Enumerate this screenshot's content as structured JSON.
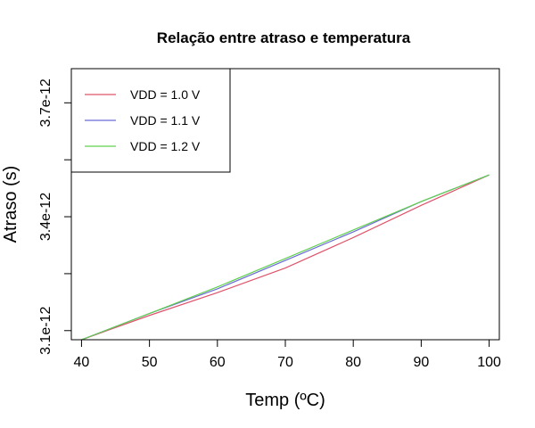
{
  "chart_data": {
    "type": "line",
    "title": "Relação entre atraso e temperatura",
    "xlabel": "Temp (ºC)",
    "ylabel": "Atraso (s)",
    "xlim": [
      38.5,
      101.5
    ],
    "ylim": [
      3.076e-12,
      3.79e-12
    ],
    "x_ticks": [
      40,
      50,
      60,
      70,
      80,
      90,
      100
    ],
    "x_tick_labels": [
      "40",
      "50",
      "60",
      "70",
      "80",
      "90",
      "100"
    ],
    "y_ticks": [
      3.1e-12,
      3.25e-12,
      3.4e-12,
      3.55e-12,
      3.7e-12
    ],
    "y_tick_labels": [
      "3.1e-12",
      "",
      "3.4e-12",
      "",
      "3.7e-12"
    ],
    "grid": false,
    "legend_position": "top-left",
    "x": [
      40,
      50,
      60,
      70,
      80,
      90,
      100
    ],
    "series": [
      {
        "name": "VDD = 1.0 V",
        "color": "#df536b",
        "values": [
          3.076e-12,
          3.14e-12,
          3.2e-12,
          3.265e-12,
          3.345e-12,
          3.43e-12,
          3.51e-12
        ]
      },
      {
        "name": "VDD = 1.1 V",
        "color": "#6b6bd6",
        "values": [
          3.076e-12,
          3.145e-12,
          3.21e-12,
          3.285e-12,
          3.36e-12,
          3.44e-12,
          3.51e-12
        ]
      },
      {
        "name": "VDD = 1.2 V",
        "color": "#61d04f",
        "values": [
          3.076e-12,
          3.145e-12,
          3.215e-12,
          3.29e-12,
          3.365e-12,
          3.44e-12,
          3.51e-12
        ]
      }
    ]
  }
}
